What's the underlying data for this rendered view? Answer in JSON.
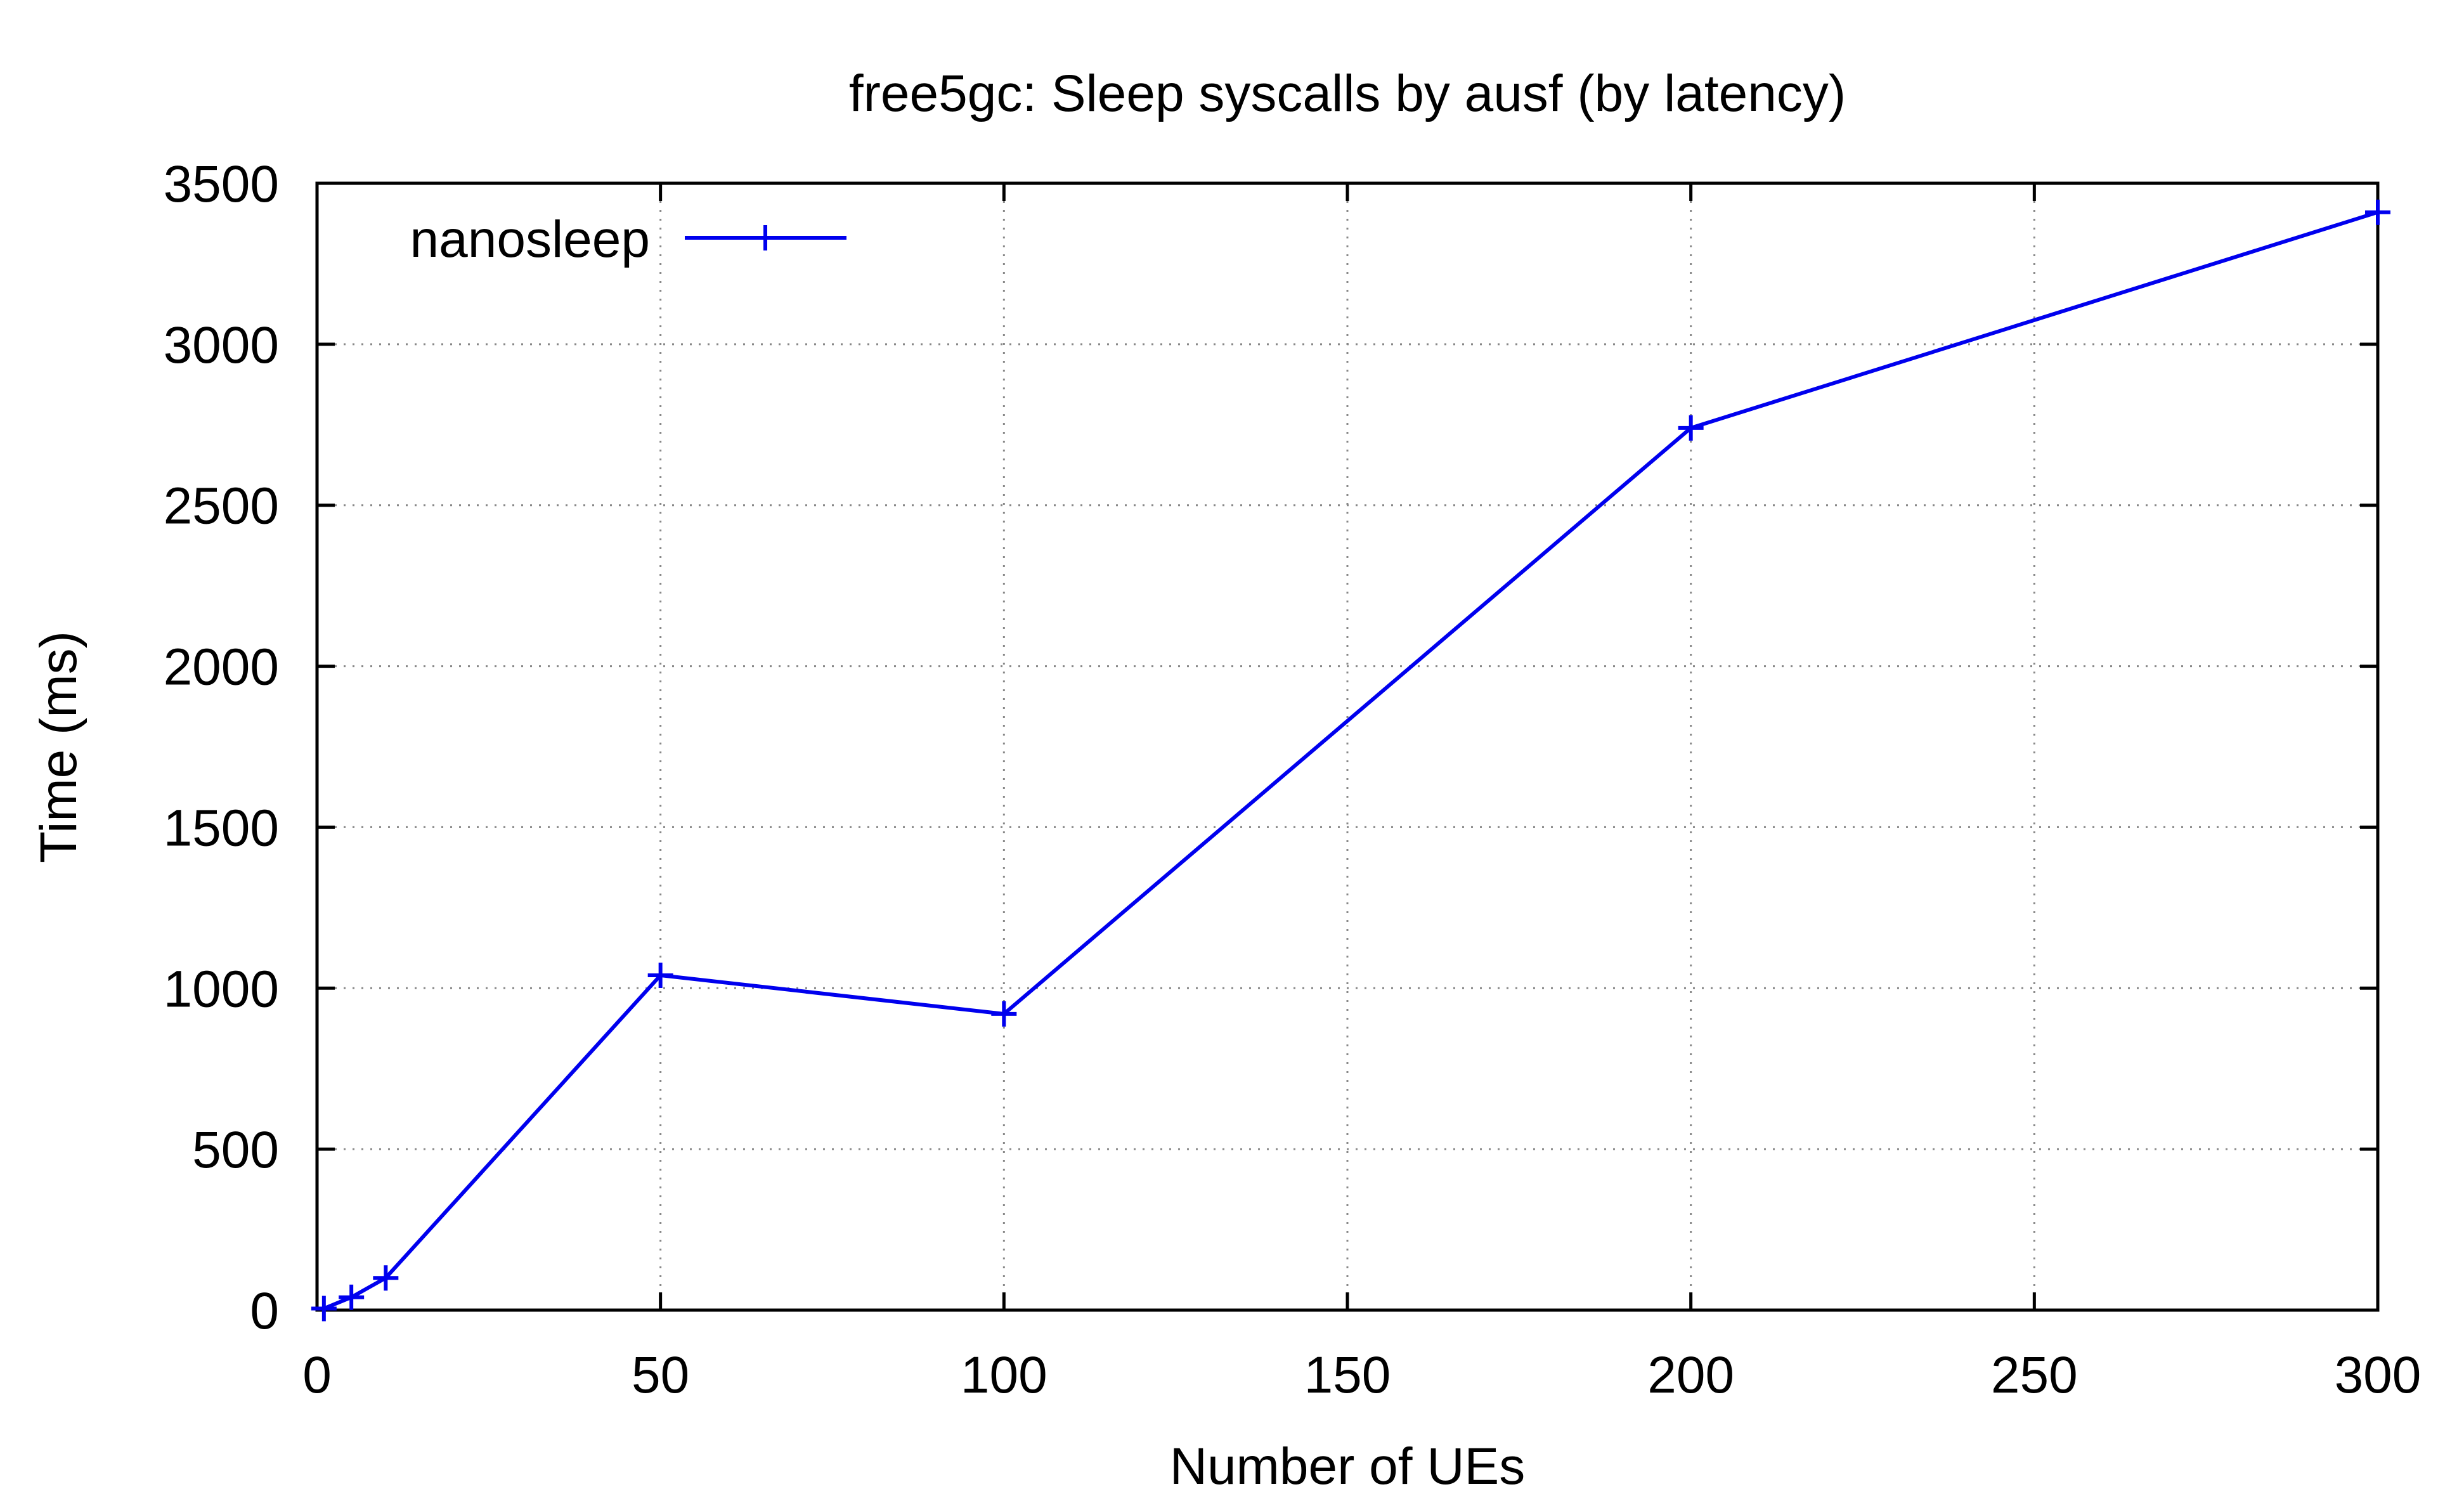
{
  "chart_data": {
    "type": "line",
    "title": "free5gc: Sleep syscalls by ausf (by latency)",
    "xlabel": "Number of UEs",
    "ylabel": "Time (ms)",
    "xlim": [
      0,
      300
    ],
    "ylim": [
      0,
      3500
    ],
    "xticks": [
      0,
      50,
      100,
      150,
      200,
      250,
      300
    ],
    "yticks": [
      0,
      500,
      1000,
      1500,
      2000,
      2500,
      3000,
      3500
    ],
    "grid": true,
    "grid_style": "dotted",
    "legend_position": "top-left",
    "series": [
      {
        "name": "nanosleep",
        "color": "#0000ee",
        "marker": "plus",
        "x": [
          1,
          5,
          10,
          50,
          100,
          200,
          300
        ],
        "y": [
          5,
          40,
          100,
          1040,
          920,
          2740,
          3410
        ]
      }
    ]
  }
}
